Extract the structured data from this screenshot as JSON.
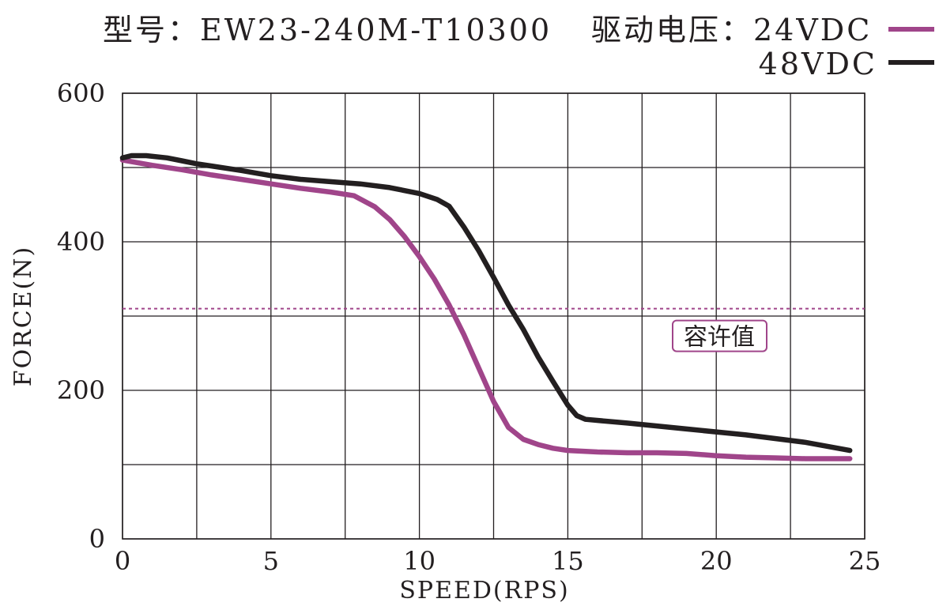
{
  "header": {
    "model_label": "型号：EW23-240M-T10300",
    "voltage_label": "驱动电压：24VDC"
  },
  "legend": {
    "second_label": "48VDC"
  },
  "colors": {
    "series_24v": "#a0458a",
    "series_48v": "#231f20",
    "grid": "#231f20",
    "limit_line": "#a0458a"
  },
  "chart_data": {
    "type": "line",
    "title": "型号：EW23-240M-T10300",
    "xlabel": "SPEED(RPS)",
    "ylabel": "FORCE(N)",
    "xlim": [
      0,
      25
    ],
    "ylim": [
      0,
      600
    ],
    "x_ticks": [
      0,
      5,
      10,
      15,
      20,
      25
    ],
    "y_ticks": [
      0,
      200,
      400,
      600
    ],
    "x_grid_step": 2.5,
    "y_grid_step": 100,
    "grid": true,
    "legend_position": "top-right",
    "series": [
      {
        "name": "24VDC",
        "color": "#a0458a",
        "points": [
          [
            0,
            510
          ],
          [
            1,
            503
          ],
          [
            2,
            497
          ],
          [
            3,
            490
          ],
          [
            4,
            484
          ],
          [
            5,
            478
          ],
          [
            6,
            472
          ],
          [
            7,
            467
          ],
          [
            7.8,
            462
          ],
          [
            8.5,
            447
          ],
          [
            9,
            430
          ],
          [
            9.5,
            407
          ],
          [
            10,
            380
          ],
          [
            10.5,
            350
          ],
          [
            11,
            315
          ],
          [
            11.5,
            275
          ],
          [
            12,
            230
          ],
          [
            12.5,
            185
          ],
          [
            13,
            150
          ],
          [
            13.5,
            134
          ],
          [
            14,
            127
          ],
          [
            14.5,
            122
          ],
          [
            15,
            119
          ],
          [
            16,
            117
          ],
          [
            17,
            116
          ],
          [
            18,
            116
          ],
          [
            19,
            115
          ],
          [
            20,
            112
          ],
          [
            21,
            110
          ],
          [
            22,
            109
          ],
          [
            23,
            108
          ],
          [
            24,
            108
          ],
          [
            24.5,
            108
          ]
        ]
      },
      {
        "name": "48VDC",
        "color": "#231f20",
        "points": [
          [
            0,
            513
          ],
          [
            0.3,
            516
          ],
          [
            0.8,
            516
          ],
          [
            1.5,
            513
          ],
          [
            2,
            509
          ],
          [
            2.5,
            505
          ],
          [
            3,
            502
          ],
          [
            4,
            496
          ],
          [
            5,
            489
          ],
          [
            6,
            484
          ],
          [
            7,
            481
          ],
          [
            8,
            478
          ],
          [
            9,
            473
          ],
          [
            10,
            465
          ],
          [
            10.6,
            457
          ],
          [
            11,
            448
          ],
          [
            11.5,
            420
          ],
          [
            12,
            388
          ],
          [
            12.5,
            352
          ],
          [
            13,
            315
          ],
          [
            13.5,
            282
          ],
          [
            14,
            245
          ],
          [
            14.5,
            212
          ],
          [
            15,
            180
          ],
          [
            15.3,
            166
          ],
          [
            15.6,
            161
          ],
          [
            17,
            156
          ],
          [
            19,
            148
          ],
          [
            21,
            140
          ],
          [
            23,
            130
          ],
          [
            24.5,
            119
          ]
        ]
      }
    ],
    "annotations": [
      {
        "type": "hline",
        "y": 310,
        "label": "容许值",
        "color": "#a0458a"
      }
    ]
  }
}
